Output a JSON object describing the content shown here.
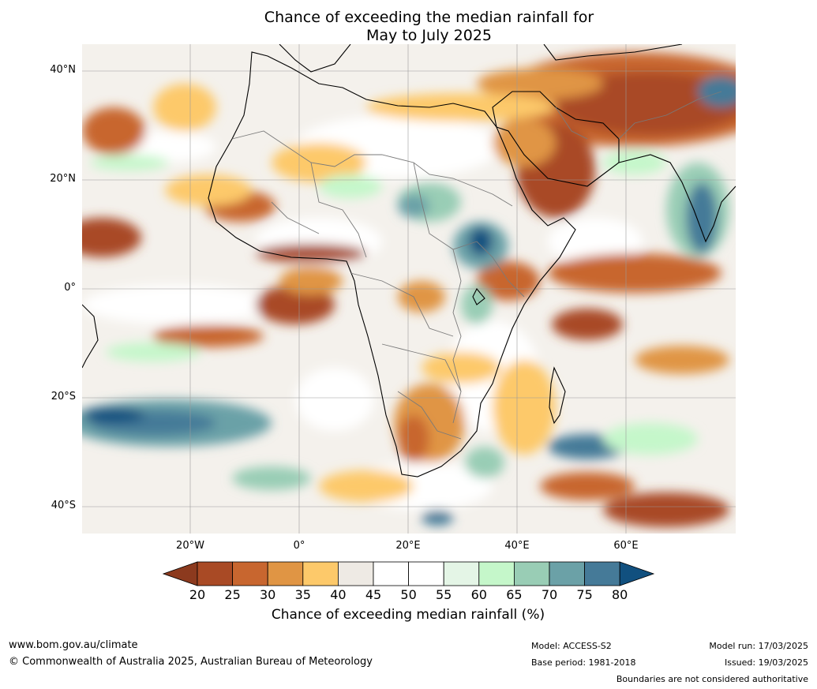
{
  "map": {
    "title_line1": "Chance of exceeding the median rainfall for",
    "title_line2": "May to July 2025",
    "lat_labels": [
      "40°N",
      "20°N",
      "0°",
      "20°S",
      "40°S"
    ],
    "lon_labels": [
      "20°W",
      "0°",
      "20°E",
      "40°E",
      "60°E"
    ]
  },
  "legend": {
    "ticks": [
      "20",
      "25",
      "30",
      "35",
      "40",
      "45",
      "50",
      "55",
      "60",
      "65",
      "70",
      "75",
      "80"
    ],
    "colors": [
      "#8c3a1e",
      "#a94a25",
      "#c8662f",
      "#e09544",
      "#fdc96a",
      "#eeeae4",
      "#ffffff",
      "#ffffff",
      "#e4f5e6",
      "#c5f7ca",
      "#99cdb5",
      "#6ba1a7",
      "#457a98",
      "#11507f"
    ],
    "label": "Chance of exceeding median rainfall (%)"
  },
  "footer": {
    "website": "www.bom.gov.au/climate",
    "copyright": "© Commonwealth of Australia 2025, Australian Bureau of Meteorology",
    "model": "Model: ACCESS-S2",
    "base_period": "Base period: 1981-2018",
    "model_run": "Model run: 17/03/2025",
    "issued": "Issued: 19/03/2025",
    "disclaimer": "Boundaries are not considered authoritative"
  }
}
